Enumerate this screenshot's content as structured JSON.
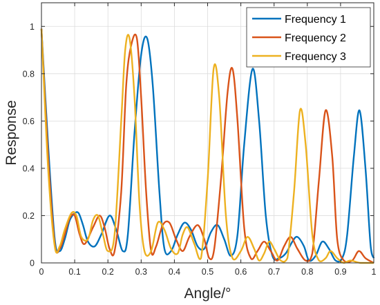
{
  "chart_data": {
    "type": "line",
    "title": "",
    "xlabel": "Angle/°",
    "ylabel": "Response",
    "xlim": [
      0,
      1
    ],
    "ylim": [
      0,
      1.1
    ],
    "xticks": [
      "0",
      "0.1",
      "0.2",
      "0.3",
      "0.4",
      "0.5",
      "0.6",
      "0.7",
      "0.8",
      "0.9",
      "1"
    ],
    "yticks": [
      "0",
      "0.2",
      "0.4",
      "0.6",
      "0.8",
      "1"
    ],
    "grid": true,
    "legend_position": "top-right",
    "series": [
      {
        "name": "Frequency 1",
        "color": "#0072BD",
        "x": [
          0,
          0.02,
          0.04,
          0.055,
          0.07,
          0.085,
          0.1,
          0.112,
          0.125,
          0.14,
          0.16,
          0.18,
          0.205,
          0.225,
          0.245,
          0.26,
          0.28,
          0.3,
          0.318,
          0.335,
          0.355,
          0.37,
          0.39,
          0.41,
          0.43,
          0.45,
          0.47,
          0.49,
          0.51,
          0.53,
          0.55,
          0.57,
          0.59,
          0.61,
          0.635,
          0.655,
          0.675,
          0.695,
          0.715,
          0.735,
          0.755,
          0.77,
          0.79,
          0.805,
          0.825,
          0.845,
          0.865,
          0.885,
          0.905,
          0.92,
          0.94,
          0.957,
          0.975,
          0.99,
          1.0
        ],
        "y": [
          0.99,
          0.5,
          0.1,
          0.05,
          0.1,
          0.18,
          0.21,
          0.21,
          0.16,
          0.09,
          0.07,
          0.12,
          0.2,
          0.14,
          0.05,
          0.12,
          0.55,
          0.88,
          0.95,
          0.75,
          0.3,
          0.06,
          0.05,
          0.12,
          0.17,
          0.14,
          0.07,
          0.06,
          0.13,
          0.16,
          0.1,
          0.03,
          0.12,
          0.5,
          0.82,
          0.6,
          0.2,
          0.03,
          0.02,
          0.04,
          0.09,
          0.11,
          0.07,
          0.01,
          0.03,
          0.09,
          0.06,
          0.01,
          0.02,
          0.12,
          0.45,
          0.645,
          0.4,
          0.08,
          0.02
        ]
      },
      {
        "name": "Frequency 2",
        "color": "#D95319",
        "x": [
          0,
          0.02,
          0.04,
          0.055,
          0.07,
          0.085,
          0.1,
          0.115,
          0.13,
          0.155,
          0.175,
          0.19,
          0.205,
          0.22,
          0.24,
          0.255,
          0.27,
          0.287,
          0.3,
          0.315,
          0.33,
          0.345,
          0.365,
          0.385,
          0.405,
          0.425,
          0.445,
          0.47,
          0.49,
          0.505,
          0.52,
          0.54,
          0.56,
          0.575,
          0.59,
          0.61,
          0.63,
          0.65,
          0.67,
          0.69,
          0.71,
          0.73,
          0.75,
          0.77,
          0.795,
          0.815,
          0.835,
          0.855,
          0.875,
          0.89,
          0.91,
          0.935,
          0.955,
          0.975,
          1.0
        ],
        "y": [
          0.99,
          0.45,
          0.08,
          0.06,
          0.12,
          0.19,
          0.2,
          0.12,
          0.08,
          0.15,
          0.2,
          0.15,
          0.06,
          0.05,
          0.3,
          0.75,
          0.92,
          0.95,
          0.7,
          0.3,
          0.05,
          0.07,
          0.16,
          0.17,
          0.1,
          0.05,
          0.11,
          0.16,
          0.1,
          0.02,
          0.06,
          0.35,
          0.72,
          0.82,
          0.6,
          0.15,
          0.02,
          0.05,
          0.09,
          0.05,
          0.01,
          0.07,
          0.11,
          0.06,
          0.01,
          0.04,
          0.35,
          0.645,
          0.45,
          0.1,
          0.01,
          0.01,
          0.05,
          0.02,
          0.0
        ]
      },
      {
        "name": "Frequency 3",
        "color": "#EDB120",
        "x": [
          0,
          0.02,
          0.04,
          0.055,
          0.07,
          0.09,
          0.105,
          0.12,
          0.14,
          0.155,
          0.17,
          0.185,
          0.2,
          0.22,
          0.24,
          0.252,
          0.265,
          0.28,
          0.295,
          0.31,
          0.33,
          0.35,
          0.37,
          0.39,
          0.41,
          0.425,
          0.44,
          0.46,
          0.48,
          0.5,
          0.518,
          0.535,
          0.555,
          0.575,
          0.6,
          0.62,
          0.64,
          0.655,
          0.67,
          0.685,
          0.7,
          0.72,
          0.74,
          0.76,
          0.778,
          0.795,
          0.815,
          0.835,
          0.855,
          0.87,
          0.89,
          0.91,
          0.93,
          0.96,
          1.0
        ],
        "y": [
          0.99,
          0.4,
          0.07,
          0.07,
          0.14,
          0.21,
          0.2,
          0.11,
          0.1,
          0.18,
          0.2,
          0.12,
          0.05,
          0.12,
          0.6,
          0.9,
          0.95,
          0.7,
          0.25,
          0.05,
          0.05,
          0.17,
          0.14,
          0.06,
          0.04,
          0.12,
          0.15,
          0.08,
          0.02,
          0.35,
          0.82,
          0.7,
          0.2,
          0.02,
          0.05,
          0.11,
          0.06,
          0.01,
          0.04,
          0.09,
          0.06,
          0.01,
          0.02,
          0.3,
          0.645,
          0.5,
          0.12,
          0.01,
          0.02,
          0.05,
          0.02,
          0.0,
          0.01,
          0.0,
          0.0
        ]
      }
    ]
  }
}
